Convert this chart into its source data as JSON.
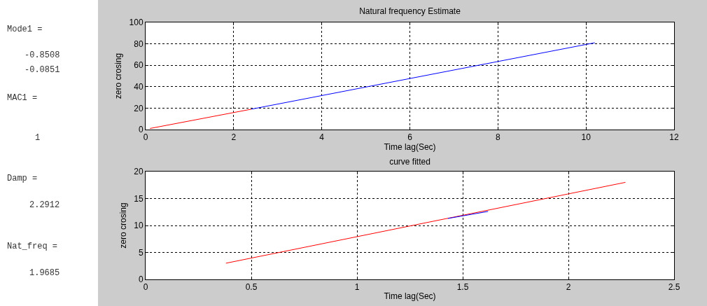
{
  "chart_data": [
    {
      "type": "other",
      "annotations": [
        "Mode1 =",
        "-0.8508",
        "-0.0851",
        "MAC1 =",
        "1",
        "Damp =",
        "2.2912",
        "Nat_freq =",
        "1.9685"
      ]
    },
    {
      "type": "line",
      "title": "Natural frequency Estimate",
      "xlabel": "Time lag(Sec)",
      "ylabel": "zero crosing",
      "xlim": [
        0,
        12
      ],
      "xticks": [
        0,
        2,
        4,
        6,
        8,
        10,
        12
      ],
      "ylim": [
        0,
        100
      ],
      "yticks": [
        0,
        20,
        40,
        60,
        80,
        100
      ],
      "grid": true,
      "marker": "none",
      "line_style": "solid",
      "series": [
        {
          "color": "#ff0000",
          "x": [
            0.1,
            2.4
          ],
          "values": [
            1,
            19
          ]
        },
        {
          "color": "#0000ff",
          "x": [
            2.4,
            10.2
          ],
          "values": [
            19,
            81
          ]
        }
      ]
    },
    {
      "type": "line",
      "title": "curve fitted",
      "xlabel": "Time lag(Sec)",
      "ylabel": "zero crosing",
      "xlim": [
        0,
        2.5
      ],
      "xticks": [
        0,
        0.5,
        1,
        1.5,
        2,
        2.5
      ],
      "ylim": [
        0,
        20
      ],
      "yticks": [
        0,
        5,
        10,
        15,
        20
      ],
      "grid": true,
      "marker": "none",
      "line_style": "solid",
      "series": [
        {
          "color": "#ff0000",
          "x": [
            0.38,
            2.27
          ],
          "values": [
            3,
            18
          ]
        },
        {
          "color": "#0000ff",
          "x": [
            1.43,
            1.62
          ],
          "values": [
            11.3,
            12.6
          ]
        }
      ]
    }
  ]
}
